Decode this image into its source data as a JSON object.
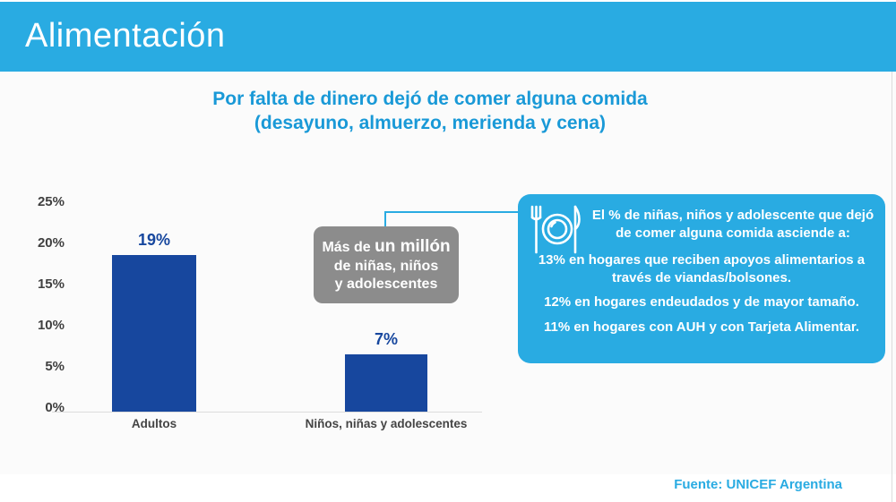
{
  "header": {
    "title": "Alimentación"
  },
  "chart_title": {
    "line1": "Por falta de dinero dejó de comer alguna comida",
    "line2": "(desayuno, almuerzo, merienda y cena)"
  },
  "chart_data": {
    "type": "bar",
    "title": "Por falta de dinero dejó de comer alguna comida (desayuno, almuerzo, merienda y cena)",
    "categories": [
      "Adultos",
      "Niños, niñas y adolescentes"
    ],
    "values": [
      19,
      7
    ],
    "value_labels": [
      "19%",
      "7%"
    ],
    "yticks": [
      "25%",
      "20%",
      "15%",
      "10%",
      "5%",
      "0%"
    ],
    "ylim": [
      0,
      25
    ],
    "grid": "baseline-only",
    "bar_color": "#17479E"
  },
  "callout": {
    "line1_prefix": "Más de ",
    "line1_emph": "un millón",
    "line2": "de niñas, niños",
    "line3": "y adolescentes"
  },
  "infobox": {
    "icon": "plate-fork-knife-icon",
    "heading": "El % de niñas, niños y adolescente que dejó de comer alguna comida asciende a:",
    "items": [
      "13% en hogares que reciben apoyos alimentarios a través de viandas/bolsones.",
      "12% en hogares endeudados y de mayor tamaño.",
      "11% en hogares con AUH y con Tarjeta Alimentar."
    ]
  },
  "footer": {
    "source": "Fuente: UNICEF Argentina"
  },
  "colors": {
    "accent": "#29ABE2",
    "bar": "#17479E",
    "title_text": "#1999D7",
    "callout_bg": "#8C8C8C",
    "axis_text": "#404040"
  }
}
